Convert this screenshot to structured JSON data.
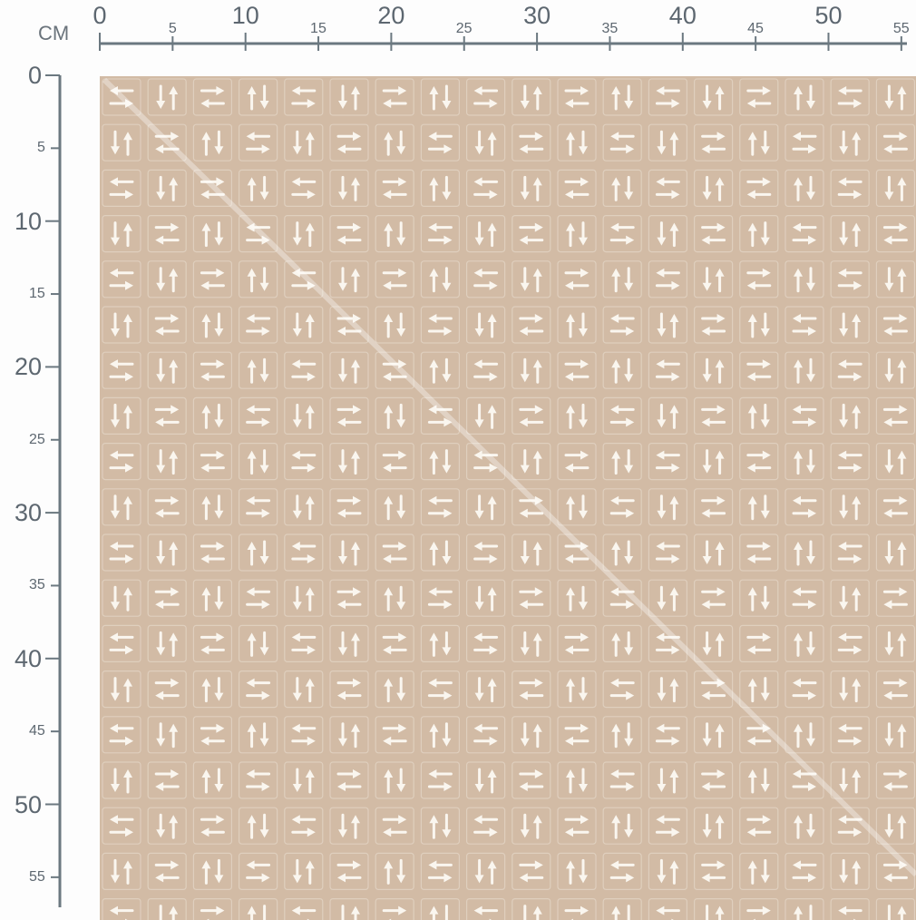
{
  "ruler": {
    "unit": "CM",
    "color": "#6b7880",
    "horizontal_labels": [
      "0",
      "5",
      "10",
      "15",
      "20",
      "25",
      "30",
      "35",
      "40",
      "45",
      "50",
      "55"
    ],
    "vertical_labels": [
      "0",
      "5",
      "10",
      "15",
      "20",
      "25",
      "30",
      "35",
      "40",
      "45",
      "50",
      "55"
    ]
  },
  "fabric": {
    "background": "#d2bba5",
    "motif_color": "#faf6ef",
    "motifs": [
      "arrows-left-right-icon",
      "arrows-down-up-icon",
      "arrows-right-left-icon",
      "arrows-up-down-icon"
    ]
  }
}
